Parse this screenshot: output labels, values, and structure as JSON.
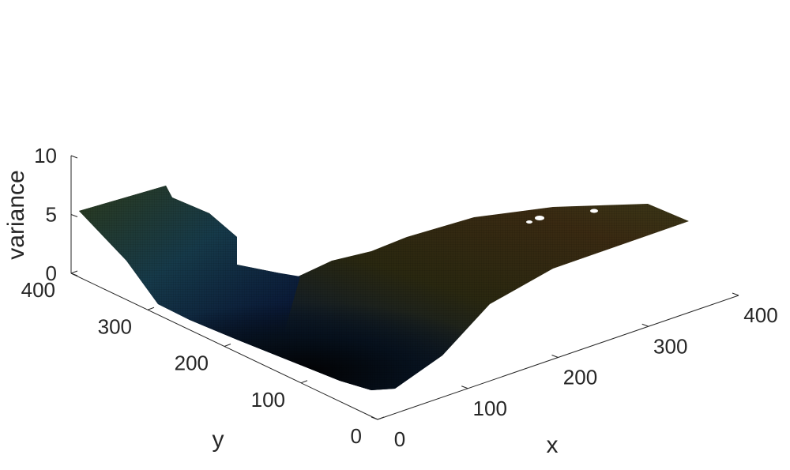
{
  "chart_data": {
    "type": "surface",
    "xlabel": "x",
    "ylabel": "y",
    "zlabel": "variance",
    "xlim": [
      0,
      400
    ],
    "ylim": [
      0,
      400
    ],
    "zlim": [
      0,
      10
    ],
    "x_ticks": [
      0,
      100,
      200,
      300,
      400
    ],
    "y_ticks": [
      0,
      100,
      200,
      300,
      400
    ],
    "z_ticks": [
      0,
      5,
      10
    ],
    "x_tick_labels": [
      "0",
      "100",
      "200",
      "300",
      "400"
    ],
    "y_tick_labels": [
      "0",
      "100",
      "200",
      "300",
      "400"
    ],
    "z_tick_labels": [
      "0",
      "5",
      "10"
    ],
    "surface_profile": {
      "along_y_at_x0": [
        {
          "y": 0,
          "variance": 0.0
        },
        {
          "y": 100,
          "variance": 0.8
        },
        {
          "y": 200,
          "variance": 1.8
        },
        {
          "y": 300,
          "variance": 3.0
        },
        {
          "y": 400,
          "variance": 5.0
        }
      ],
      "along_x_at_y0": [
        {
          "x": 0,
          "variance": 0.0
        },
        {
          "x": 100,
          "variance": 2.2
        },
        {
          "x": 200,
          "variance": 3.6
        },
        {
          "x": 300,
          "variance": 4.4
        },
        {
          "x": 400,
          "variance": 5.0
        }
      ]
    },
    "colormap": [
      "#050505",
      "#0b1a3a",
      "#1e4a4a",
      "#3a3a12",
      "#4a2a10"
    ],
    "grid": false
  }
}
